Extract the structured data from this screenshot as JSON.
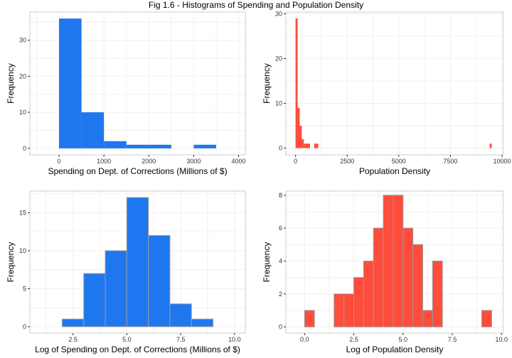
{
  "figure": {
    "title": "Fig 1.6 - Histograms of Spending and Population Density"
  },
  "colors": {
    "blue": "#1f77f0",
    "red": "#ff4c3b",
    "panel_border": "#cccccc",
    "grid": "#ededed"
  },
  "chart_data": [
    {
      "type": "bar",
      "xlabel": "Spending on Dept. of Corrections (Millions of $)",
      "ylabel": "Frequency",
      "xlim": [
        -650,
        4150
      ],
      "ylim": [
        -1.8,
        37.8
      ],
      "xticks": [
        0,
        1000,
        2000,
        3000,
        4000
      ],
      "xtick_labels": [
        "0",
        "1000",
        "2000",
        "3000",
        "4000"
      ],
      "yticks": [
        0,
        10,
        20,
        30
      ],
      "ytick_labels": [
        "0",
        "10",
        "20",
        "30"
      ],
      "grid": true,
      "bar_color": "blue",
      "bar_stroke": "none",
      "bins": [
        {
          "x0": 0,
          "x1": 500,
          "count": 36
        },
        {
          "x0": 500,
          "x1": 1000,
          "count": 10
        },
        {
          "x0": 1000,
          "x1": 1500,
          "count": 2
        },
        {
          "x0": 1500,
          "x1": 2000,
          "count": 1
        },
        {
          "x0": 2000,
          "x1": 2500,
          "count": 1
        },
        {
          "x0": 2500,
          "x1": 3000,
          "count": 0
        },
        {
          "x0": 3000,
          "x1": 3500,
          "count": 1
        }
      ]
    },
    {
      "type": "bar",
      "xlabel": "Population Density",
      "ylabel": "Frequency",
      "xlim": [
        -470,
        10070
      ],
      "ylim": [
        -1.5,
        30.4
      ],
      "xticks": [
        0,
        2500,
        5000,
        7500,
        10000
      ],
      "xtick_labels": [
        "0",
        "2500",
        "5000",
        "7500",
        "10000"
      ],
      "yticks": [
        0,
        10,
        20,
        30
      ],
      "ytick_labels": [
        "0",
        "10",
        "20",
        "30"
      ],
      "grid": true,
      "bar_color": "red",
      "bar_stroke": "none",
      "bins": [
        {
          "x0": 0,
          "x1": 100,
          "count": 29
        },
        {
          "x0": 100,
          "x1": 200,
          "count": 9
        },
        {
          "x0": 200,
          "x1": 300,
          "count": 5
        },
        {
          "x0": 300,
          "x1": 400,
          "count": 2
        },
        {
          "x0": 400,
          "x1": 500,
          "count": 1
        },
        {
          "x0": 500,
          "x1": 600,
          "count": 1
        },
        {
          "x0": 600,
          "x1": 700,
          "count": 1
        },
        {
          "x0": 900,
          "x1": 1000,
          "count": 1
        },
        {
          "x0": 1000,
          "x1": 1100,
          "count": 1
        },
        {
          "x0": 9400,
          "x1": 9500,
          "count": 1
        }
      ]
    },
    {
      "type": "bar",
      "xlabel": "Log of Spending on Dept. of Corrections (Millions of $)",
      "ylabel": "Frequency",
      "xlim": [
        0.5,
        10.5
      ],
      "ylim": [
        -0.85,
        17.85
      ],
      "xticks": [
        2.5,
        5,
        7.5,
        10
      ],
      "xtick_labels": [
        "2.5",
        "5.0",
        "7.5",
        "10.0"
      ],
      "yticks": [
        0,
        5,
        10,
        15
      ],
      "ytick_labels": [
        "0",
        "5",
        "10",
        "15"
      ],
      "grid": true,
      "bar_color": "blue",
      "bar_stroke": "#999999",
      "bins": [
        {
          "x0": 1,
          "x1": 2,
          "count": 0
        },
        {
          "x0": 2,
          "x1": 3,
          "count": 1
        },
        {
          "x0": 3,
          "x1": 4,
          "count": 7
        },
        {
          "x0": 4,
          "x1": 5,
          "count": 10
        },
        {
          "x0": 5,
          "x1": 6,
          "count": 17
        },
        {
          "x0": 6,
          "x1": 7,
          "count": 12
        },
        {
          "x0": 7,
          "x1": 8,
          "count": 3
        },
        {
          "x0": 8,
          "x1": 9,
          "count": 1
        },
        {
          "x0": 9,
          "x1": 10,
          "count": 0
        }
      ]
    },
    {
      "type": "bar",
      "xlabel": "Log of Population Density",
      "ylabel": "Frequency",
      "xlim": [
        -0.95,
        10.1
      ],
      "ylim": [
        -0.38,
        8.25
      ],
      "xticks": [
        0,
        2.5,
        5,
        7.5,
        10
      ],
      "xtick_labels": [
        "0.0",
        "2.5",
        "5.0",
        "7.5",
        "10.0"
      ],
      "yticks": [
        0,
        2,
        4,
        6,
        8
      ],
      "ytick_labels": [
        "0",
        "2",
        "4",
        "6",
        "8"
      ],
      "grid": true,
      "bar_color": "red",
      "bar_stroke": "#999999",
      "bins": [
        {
          "x0": -0.5,
          "x1": 0,
          "count": 0
        },
        {
          "x0": 0,
          "x1": 0.5,
          "count": 1
        },
        {
          "x0": 0.5,
          "x1": 1,
          "count": 0
        },
        {
          "x0": 1,
          "x1": 1.5,
          "count": 0
        },
        {
          "x0": 1.5,
          "x1": 2,
          "count": 2
        },
        {
          "x0": 2,
          "x1": 2.5,
          "count": 2
        },
        {
          "x0": 2.5,
          "x1": 3,
          "count": 3
        },
        {
          "x0": 3,
          "x1": 3.5,
          "count": 4
        },
        {
          "x0": 3.5,
          "x1": 4,
          "count": 6
        },
        {
          "x0": 4,
          "x1": 4.5,
          "count": 8
        },
        {
          "x0": 4.5,
          "x1": 5,
          "count": 8
        },
        {
          "x0": 5,
          "x1": 5.5,
          "count": 6
        },
        {
          "x0": 5.5,
          "x1": 6,
          "count": 5
        },
        {
          "x0": 6,
          "x1": 6.5,
          "count": 1
        },
        {
          "x0": 6.5,
          "x1": 7,
          "count": 4
        },
        {
          "x0": 7,
          "x1": 7.5,
          "count": 0
        },
        {
          "x0": 7.5,
          "x1": 8,
          "count": 0
        },
        {
          "x0": 8,
          "x1": 8.5,
          "count": 0
        },
        {
          "x0": 8.5,
          "x1": 9,
          "count": 0
        },
        {
          "x0": 9,
          "x1": 9.5,
          "count": 1
        },
        {
          "x0": 9.5,
          "x1": 10,
          "count": 0
        }
      ]
    }
  ]
}
